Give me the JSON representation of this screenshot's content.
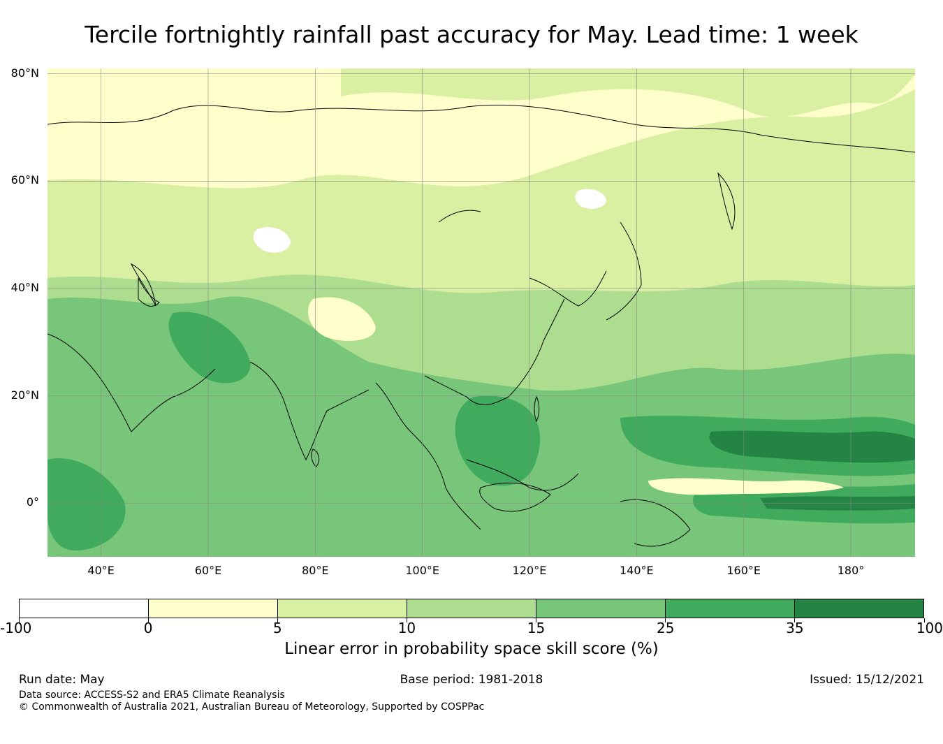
{
  "title": "Tercile fortnightly rainfall past accuracy for May. Lead time: 1 week",
  "map": {
    "lat_labels": [
      "80°N",
      "60°N",
      "40°N",
      "20°N",
      "0°"
    ],
    "lat_values": [
      80,
      60,
      40,
      20,
      0
    ],
    "lon_labels": [
      "40°E",
      "60°E",
      "80°E",
      "100°E",
      "120°E",
      "140°E",
      "160°E",
      "180°"
    ],
    "lon_values": [
      40,
      60,
      80,
      100,
      120,
      140,
      160,
      180
    ],
    "lon_range": [
      30,
      192
    ],
    "lat_range": [
      -10,
      81
    ],
    "gridlines": true
  },
  "colorbar": {
    "labels": [
      "-100",
      "0",
      "5",
      "10",
      "15",
      "25",
      "35",
      "100"
    ],
    "colors": [
      "#ffffff",
      "#ffffcc",
      "#d9f0a3",
      "#addd8e",
      "#78c679",
      "#41ab5d",
      "#238443"
    ],
    "label": "Linear error in probability space skill score (%)"
  },
  "footer": {
    "run_date": "Run date: May",
    "base_period": "Base period: 1981-2018",
    "issued": "Issued: 15/12/2021",
    "data_source": "Data source: ACCESS-S2 and ERA5 Climate Reanalysis",
    "copyright": "© Commonwealth of Australia 2021, Australian Bureau of Meteorology, Supported by COSPPac"
  }
}
